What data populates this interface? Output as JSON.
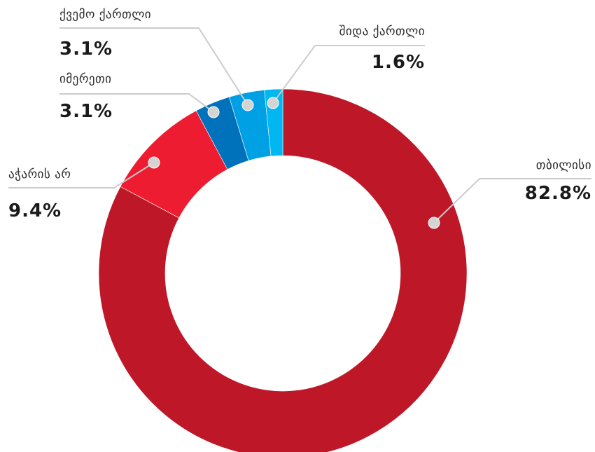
{
  "chart_data": {
    "type": "pie",
    "variant": "donut",
    "start_angle_deg": 0,
    "direction": "clockwise",
    "title": "",
    "slices": [
      {
        "label": "თბილისი",
        "value": 82.8,
        "display": "82.8%",
        "color": "#be1828"
      },
      {
        "label": "აჭარის არ",
        "value": 9.4,
        "display": "9.4%",
        "color": "#ed1c30"
      },
      {
        "label": "იმერეთი",
        "value": 3.1,
        "display": "3.1%",
        "color": "#0072bb"
      },
      {
        "label": "ქვემო ქართლი",
        "value": 3.1,
        "display": "3.1%",
        "color": "#00a0e4"
      },
      {
        "label": "შიდა ქართლი",
        "value": 1.6,
        "display": "1.6%",
        "color": "#00b7f1"
      }
    ]
  }
}
